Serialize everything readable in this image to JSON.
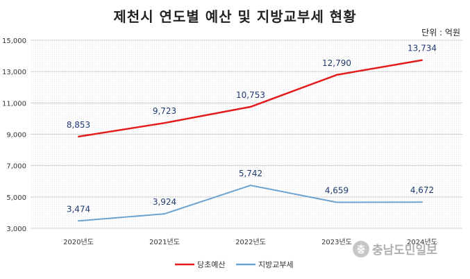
{
  "chart_data": {
    "type": "line",
    "title": "제천시 연도별 예산 및 지방교부세 현황",
    "unit_note": "단위 : 억원",
    "categories": [
      "2020년도",
      "2021년도",
      "2022년도",
      "2023년도",
      "2024년도"
    ],
    "y_ticks": [
      "3,000",
      "5,000",
      "7,000",
      "9,000",
      "11,000",
      "13,000",
      "15,000"
    ],
    "ylim": [
      3000,
      15000
    ],
    "grid": true,
    "legend_position": "bottom",
    "series": [
      {
        "name": "당초예산",
        "color": "#e31b1b",
        "values": [
          8853,
          9723,
          10753,
          12790,
          13734
        ],
        "labels": [
          "8,853",
          "9,723",
          "10,753",
          "12,790",
          "13,734"
        ]
      },
      {
        "name": "지방교부세",
        "color": "#6aa2d2",
        "values": [
          3474,
          3924,
          5742,
          4659,
          4672
        ],
        "labels": [
          "3,474",
          "3,924",
          "5,742",
          "4,659",
          "4,672"
        ]
      }
    ]
  },
  "watermark": {
    "icon": "충",
    "text": "충남도민일보"
  }
}
